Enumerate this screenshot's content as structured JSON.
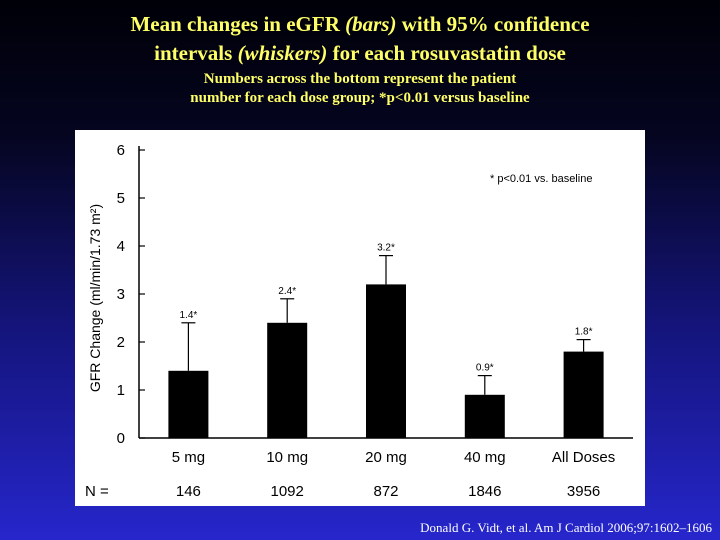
{
  "header": {
    "title_line1_a": "Mean changes in eGFR ",
    "title_line1_b": "(bars)",
    "title_line1_c": " with 95% confidence",
    "title_line2_a": "intervals ",
    "title_line2_b": "(whiskers)",
    "title_line2_c": " for each rosuvastatin dose",
    "subtitle_line1": "Numbers across the bottom represent the patient",
    "subtitle_line2": "number for each dose group; *p<0.01 versus baseline"
  },
  "citation": "Donald G. Vidt, et al. Am J Cardiol 2006;97:1602–1606",
  "colors": {
    "bar": "#000000",
    "panel": "#ffffff",
    "title": "#ffff66"
  },
  "chart_data": {
    "type": "bar",
    "categories": [
      "5 mg",
      "10 mg",
      "20 mg",
      "40 mg",
      "All Doses"
    ],
    "values": [
      1.4,
      2.4,
      3.2,
      0.9,
      1.8
    ],
    "ci_upper": [
      2.4,
      2.9,
      3.8,
      1.3,
      2.05
    ],
    "data_labels": [
      "1.4*",
      "2.4*",
      "3.2*",
      "0.9*",
      "1.8*"
    ],
    "n_label": "N =",
    "patient_numbers": [
      "146",
      "1092",
      "872",
      "1846",
      "3956"
    ],
    "ylabel": "GFR Change (ml/min/1.73 m²)",
    "xlabel": "",
    "ylim": [
      0,
      6
    ],
    "yticks": [
      0,
      1,
      2,
      3,
      4,
      5,
      6
    ],
    "annotation": "* p<0.01 vs. baseline",
    "grid": false
  }
}
